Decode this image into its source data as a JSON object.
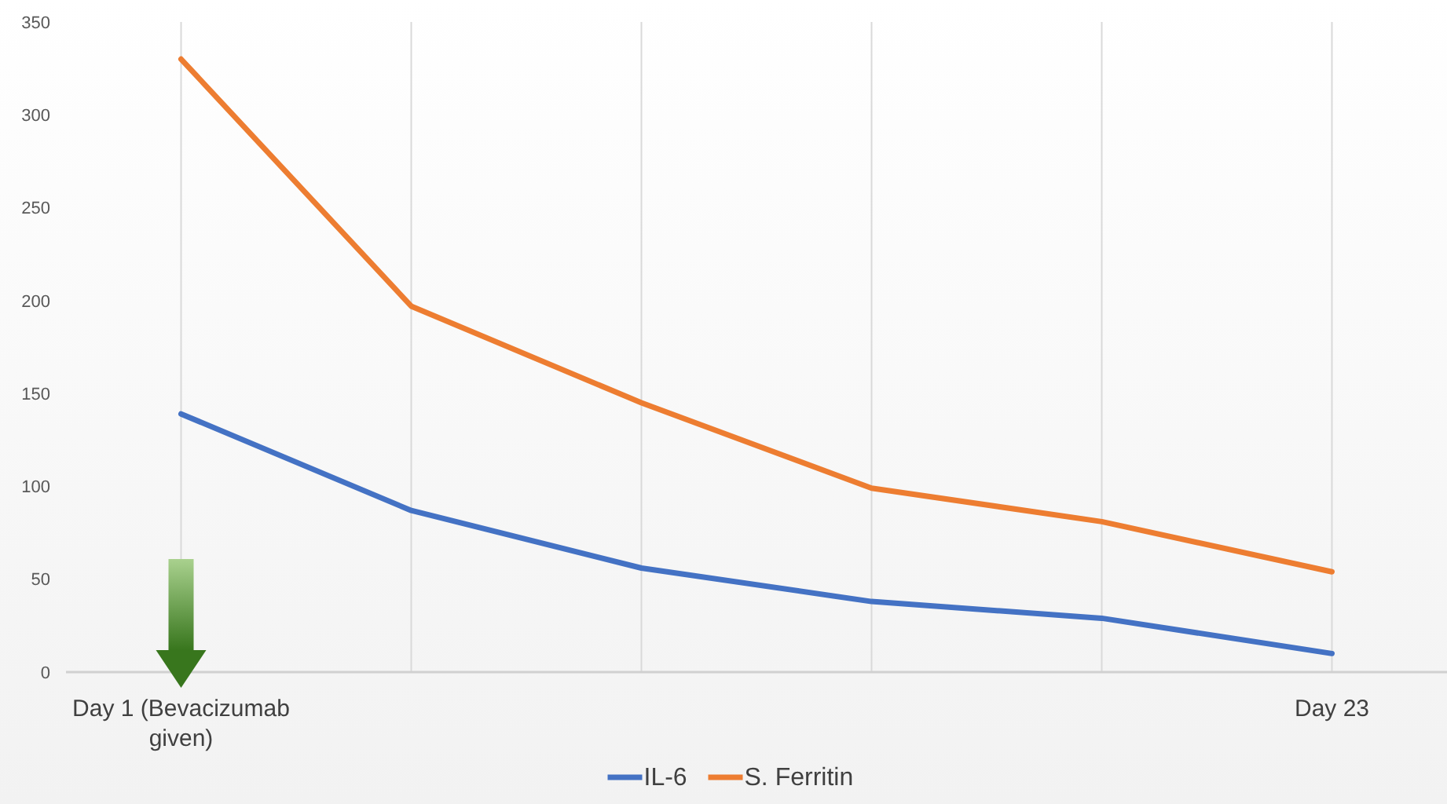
{
  "chart_data": {
    "type": "line",
    "categories": [
      "Day 1 (Bevacizumab given)",
      null,
      null,
      null,
      null,
      "Day 23"
    ],
    "series": [
      {
        "name": "IL-6",
        "color": "#4472c4",
        "values": [
          139,
          87,
          56,
          38,
          29,
          10
        ]
      },
      {
        "name": "S. Ferritin",
        "color": "#ed7d31",
        "values": [
          330,
          197,
          145,
          99,
          81,
          54
        ]
      }
    ],
    "ylim": [
      0,
      350
    ],
    "yticks": [
      0,
      50,
      100,
      150,
      200,
      250,
      300,
      350
    ],
    "grid": "x",
    "legend": "bottom",
    "marker": "none",
    "line_style": "solid"
  }
}
